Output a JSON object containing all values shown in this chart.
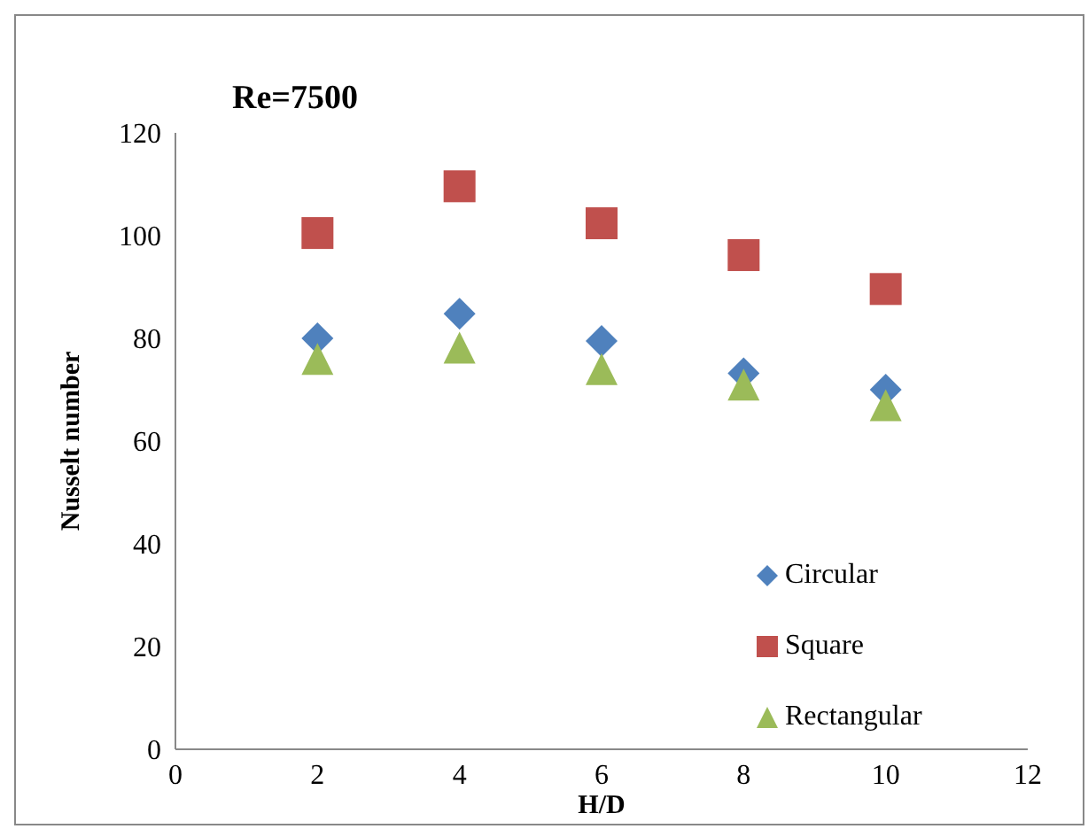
{
  "chart_data": {
    "type": "scatter",
    "title": "Re=7500",
    "xlabel": "H/D",
    "ylabel": "Nusselt number",
    "x": [
      2,
      4,
      6,
      8,
      10
    ],
    "series": [
      {
        "name": "Circular",
        "color": "#4f81bd",
        "marker": "diamond",
        "values": [
          80,
          84.8,
          79.5,
          73.2,
          70
        ]
      },
      {
        "name": "Square",
        "color": "#c0504d",
        "marker": "square",
        "values": [
          100.5,
          109.6,
          102.4,
          96.2,
          89.6
        ]
      },
      {
        "name": "Rectangular",
        "color": "#9bbb59",
        "marker": "triangle",
        "values": [
          76,
          78.2,
          74,
          71,
          67
        ]
      }
    ],
    "xlim": [
      0,
      12
    ],
    "xticks": [
      0,
      2,
      4,
      6,
      8,
      10,
      12
    ],
    "ylim": [
      0,
      120
    ],
    "yticks": [
      0,
      20,
      40,
      60,
      80,
      100,
      120
    ],
    "grid": false,
    "legend": "bottom right"
  }
}
